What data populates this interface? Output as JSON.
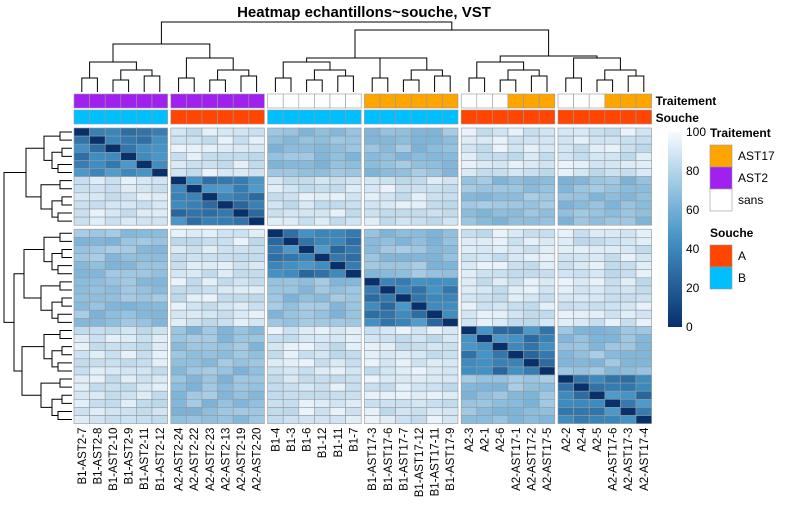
{
  "chart_data": {
    "type": "heatmap",
    "title": "Heatmap echantillons~souche, VST",
    "columns": [
      "B1-AST2-7",
      "B1-AST2-8",
      "B1-AST2-10",
      "B1-AST2-9",
      "B1-AST2-11",
      "B1-AST2-12",
      "A2-AST2-24",
      "A2-AST2-22",
      "A2-AST2-23",
      "A2-AST2-13",
      "A2-AST2-19",
      "A2-AST2-20",
      "B1-4",
      "B1-3",
      "B1-6",
      "B1-12",
      "B1-11",
      "B1-7",
      "B1-AST17-3",
      "B1-AST17-6",
      "B1-AST17-7",
      "B1-AST17-12",
      "B1-AST17-11",
      "B1-AST17-9",
      "A2-3",
      "A2-1",
      "A2-6",
      "A2-AST17-1",
      "A2-AST17-2",
      "A2-AST17-5",
      "A2-2",
      "A2-4",
      "A2-5",
      "A2-AST17-6",
      "A2-AST17-3",
      "A2-AST17-4"
    ],
    "column_groups": [
      6,
      6,
      6,
      6,
      6,
      6
    ],
    "row_groups": [
      12,
      24
    ],
    "traitement": [
      "AST2",
      "AST2",
      "AST2",
      "AST2",
      "AST2",
      "AST2",
      "AST2",
      "AST2",
      "AST2",
      "AST2",
      "AST2",
      "AST2",
      "sans",
      "sans",
      "sans",
      "sans",
      "sans",
      "sans",
      "AST17",
      "AST17",
      "AST17",
      "AST17",
      "AST17",
      "AST17",
      "sans",
      "sans",
      "sans",
      "AST17",
      "AST17",
      "AST17",
      "sans",
      "sans",
      "sans",
      "AST17",
      "AST17",
      "AST17"
    ],
    "souche": [
      "B",
      "B",
      "B",
      "B",
      "B",
      "B",
      "A",
      "A",
      "A",
      "A",
      "A",
      "A",
      "B",
      "B",
      "B",
      "B",
      "B",
      "B",
      "B",
      "B",
      "B",
      "B",
      "B",
      "B",
      "A",
      "A",
      "A",
      "A",
      "A",
      "A",
      "A",
      "A",
      "A",
      "A",
      "A",
      "A"
    ],
    "color_scale": {
      "min": 0,
      "max": 100,
      "ticks": [
        0,
        20,
        40,
        60,
        80,
        100
      ],
      "low_color": "#08306b",
      "high_color": "#f7fbff"
    },
    "annotation_rows": [
      "Traitement",
      "Souche"
    ],
    "legend": {
      "traitement": {
        "title": "Traitement",
        "items": [
          {
            "label": "AST17",
            "color": "#ffa500"
          },
          {
            "label": "AST2",
            "color": "#a020f0"
          },
          {
            "label": "sans",
            "color": "#ffffff"
          }
        ]
      },
      "souche": {
        "title": "Souche",
        "items": [
          {
            "label": "A",
            "color": "#ff4500"
          },
          {
            "label": "B",
            "color": "#00bfff"
          }
        ]
      }
    },
    "block_pattern": "Low values on the diagonal within matching column/row groups; off-diagonal blocks are light.",
    "values": []
  }
}
